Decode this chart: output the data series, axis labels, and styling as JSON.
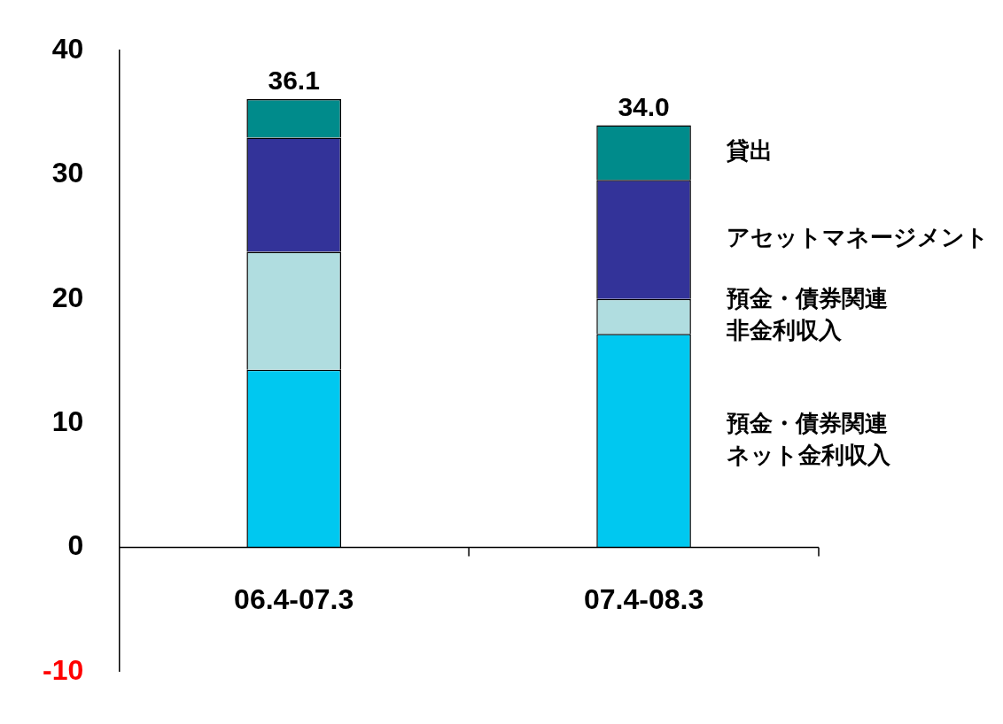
{
  "chart_data": {
    "type": "bar",
    "stacked": true,
    "categories": [
      "06.4-07.3",
      "07.4-08.3"
    ],
    "series": [
      {
        "name": "預金・債券関連ネット金利収入",
        "color": "#00c8f0",
        "values": [
          14.3,
          17.2
        ]
      },
      {
        "name": "預金・債券関連非金利収入",
        "color": "#b0dde0",
        "values": [
          9.5,
          2.8
        ]
      },
      {
        "name": "アセットマネージメント",
        "color": "#333399",
        "values": [
          9.2,
          9.6
        ]
      },
      {
        "name": "貸出",
        "color": "#008b8b",
        "values": [
          3.1,
          4.4
        ]
      }
    ],
    "totals": [
      "36.1",
      "34.0"
    ],
    "ylim": [
      -10,
      40
    ],
    "yticks": [
      -10,
      0,
      10,
      20,
      30,
      40
    ],
    "grid": false,
    "legend": false
  }
}
